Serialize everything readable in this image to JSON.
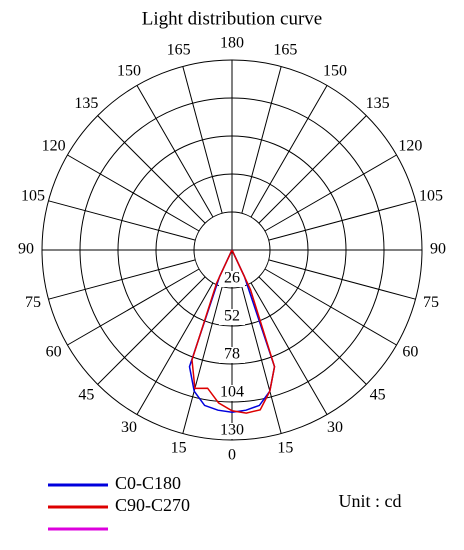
{
  "chart_data": {
    "type": "polar",
    "title": "Light distribution curve",
    "unit_label": "Unit : cd",
    "rlim": [
      0,
      130
    ],
    "rticks": [
      26,
      52,
      78,
      104,
      130
    ],
    "angle_ticks": [
      0,
      15,
      30,
      45,
      60,
      75,
      90,
      105,
      120,
      135,
      150,
      165,
      180
    ],
    "angles": [
      -30,
      -25,
      -20,
      -15,
      -10,
      -5,
      0,
      5,
      10,
      15,
      20,
      25,
      30
    ],
    "series": [
      {
        "name": "C0-C180",
        "color": "#0000dd",
        "values": [
          0,
          20,
          85,
          100,
          108,
          110,
          111,
          110,
          108,
          100,
          85,
          20,
          0
        ]
      },
      {
        "name": "C90-C270",
        "color": "#dd0000",
        "values": [
          0,
          25,
          80,
          98,
          96,
          105,
          110,
          112,
          111,
          100,
          85,
          30,
          0
        ]
      },
      {
        "color": "#dd00dd",
        "values": [
          null,
          null,
          null,
          null,
          null,
          null,
          null,
          null,
          null,
          null,
          null,
          null,
          null
        ]
      }
    ]
  }
}
